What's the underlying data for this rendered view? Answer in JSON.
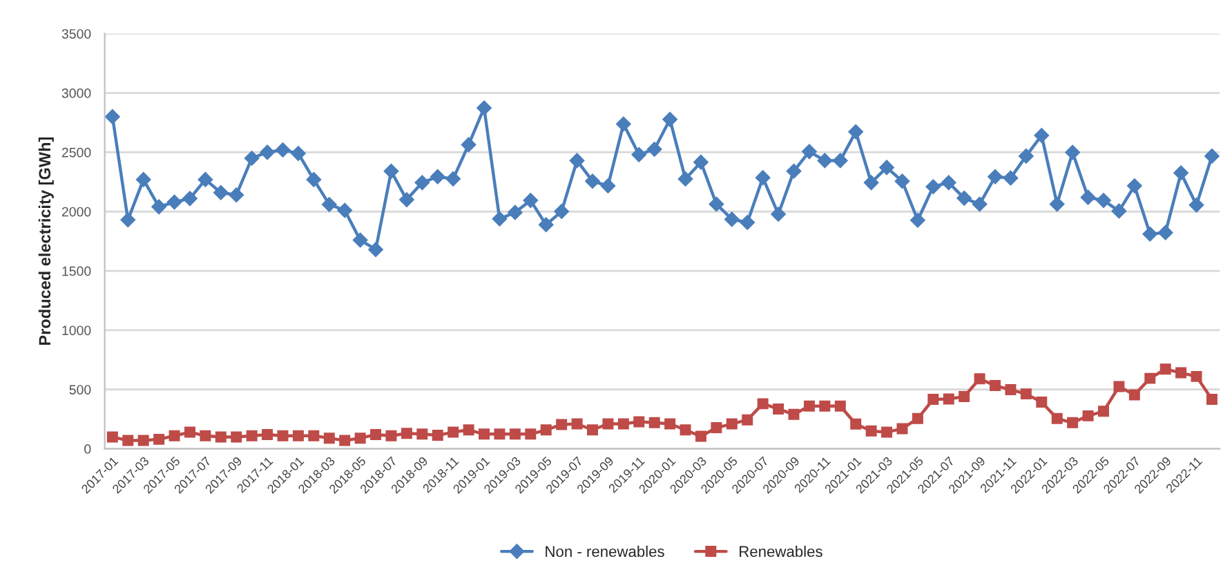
{
  "chart_data": {
    "type": "line",
    "ylabel": "Produced electricity [GWh]",
    "categories": [
      "2017-01",
      null,
      "2017-03",
      null,
      "2017-05",
      null,
      "2017-07",
      null,
      "2017-09",
      null,
      "2017-11",
      null,
      "2018-01",
      null,
      "2018-03",
      null,
      "2018-05",
      null,
      "2018-07",
      null,
      "2018-09",
      null,
      "2018-11",
      null,
      "2019-01",
      null,
      "2019-03",
      null,
      "2019-05",
      null,
      "2019-07",
      null,
      "2019-09",
      null,
      "2019-11",
      null,
      "2020-01",
      null,
      "2020-03",
      null,
      "2020-05",
      null,
      "2020-07",
      null,
      "2020-09",
      null,
      "2020-11",
      null,
      "2021-01",
      null,
      "2021-03",
      null,
      "2021-05",
      null,
      "2021-07",
      null,
      "2021-09",
      null,
      "2021-11",
      null,
      "2022-01",
      null,
      "2022-03",
      null,
      "2022-05",
      null,
      "2022-07",
      null,
      "2022-09",
      null,
      "2022-11",
      null
    ],
    "series": [
      {
        "name": "Non - renewables",
        "color": "#4a7ebb",
        "marker": "diamond",
        "values": [
          2800,
          1930,
          2270,
          2040,
          2080,
          2110,
          2270,
          2160,
          2140,
          2450,
          2500,
          2520,
          2490,
          2270,
          2060,
          2010,
          1760,
          1680,
          2340,
          2100,
          2244,
          2294,
          2276,
          2564,
          2874,
          1939,
          1993,
          2094,
          1889,
          2001,
          2430,
          2256,
          2217,
          2738,
          2480,
          2526,
          2777,
          2275,
          2417,
          2063,
          1935,
          1908,
          2286,
          1978,
          2341,
          2506,
          2430,
          2430,
          2673,
          2244,
          2372,
          2256,
          1927,
          2210,
          2244,
          2113,
          2063,
          2294,
          2283,
          2468,
          2642,
          2063,
          2499,
          2120,
          2094,
          2005,
          2217,
          1811,
          1823,
          2326,
          2055,
          2468
        ]
      },
      {
        "name": "Renewables",
        "color": "#be4b48",
        "marker": "square",
        "values": [
          100,
          70,
          70,
          80,
          110,
          140,
          110,
          100,
          100,
          110,
          120,
          110,
          110,
          110,
          90,
          70,
          90,
          120,
          110,
          130,
          124,
          114,
          140,
          159,
          124,
          124,
          124,
          124,
          159,
          205,
          210,
          159,
          210,
          210,
          228,
          220,
          210,
          159,
          105,
          178,
          210,
          244,
          380,
          336,
          290,
          360,
          360,
          360,
          209,
          150,
          140,
          170,
          255,
          417,
          420,
          440,
          590,
          533,
          498,
          463,
          394,
          255,
          220,
          278,
          316,
          525,
          455,
          594,
          672,
          641,
          610,
          417
        ]
      }
    ],
    "ylim": [
      0,
      3500
    ],
    "yticks": [
      0,
      500,
      1000,
      1500,
      2000,
      2500,
      3000,
      3500
    ],
    "grid": "y",
    "legend": "bottom",
    "line_style": "solid"
  }
}
